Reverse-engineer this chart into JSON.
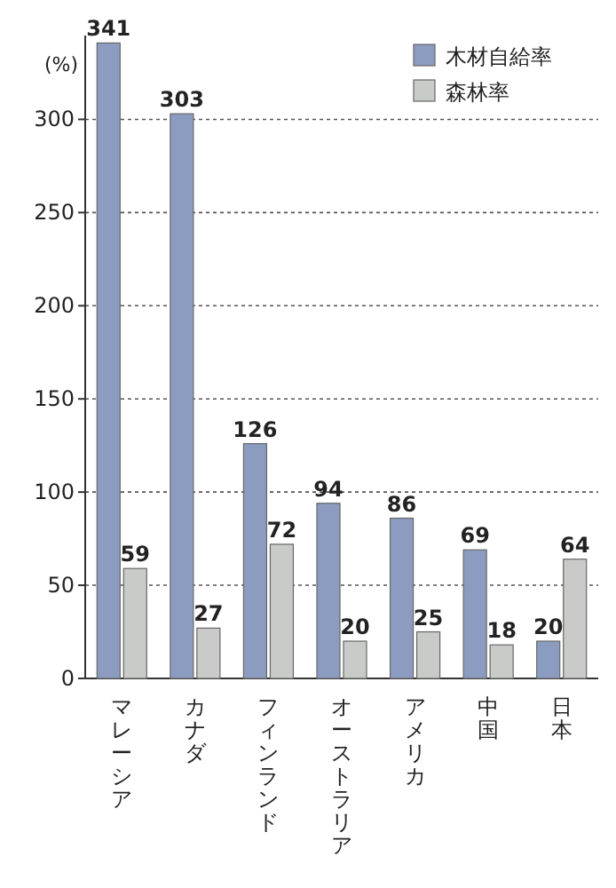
{
  "chart_data": {
    "type": "bar",
    "ylabel": "(%)",
    "categories": [
      "マレーシア",
      "カナダ",
      "フィンランド",
      "オーストラリア",
      "アメリカ",
      "中国",
      "日本"
    ],
    "series": [
      {
        "name": "木材自給率",
        "color": "#8c9cc0",
        "values": [
          341,
          303,
          126,
          94,
          86,
          69,
          20
        ]
      },
      {
        "name": "森林率",
        "color": "#c9cbc8",
        "values": [
          59,
          27,
          72,
          20,
          25,
          18,
          64
        ]
      }
    ],
    "ylim": [
      0,
      345
    ],
    "yticks": [
      0,
      50,
      100,
      150,
      200,
      250,
      300
    ],
    "grid": "y",
    "legend": "top right",
    "data_labels": true
  }
}
